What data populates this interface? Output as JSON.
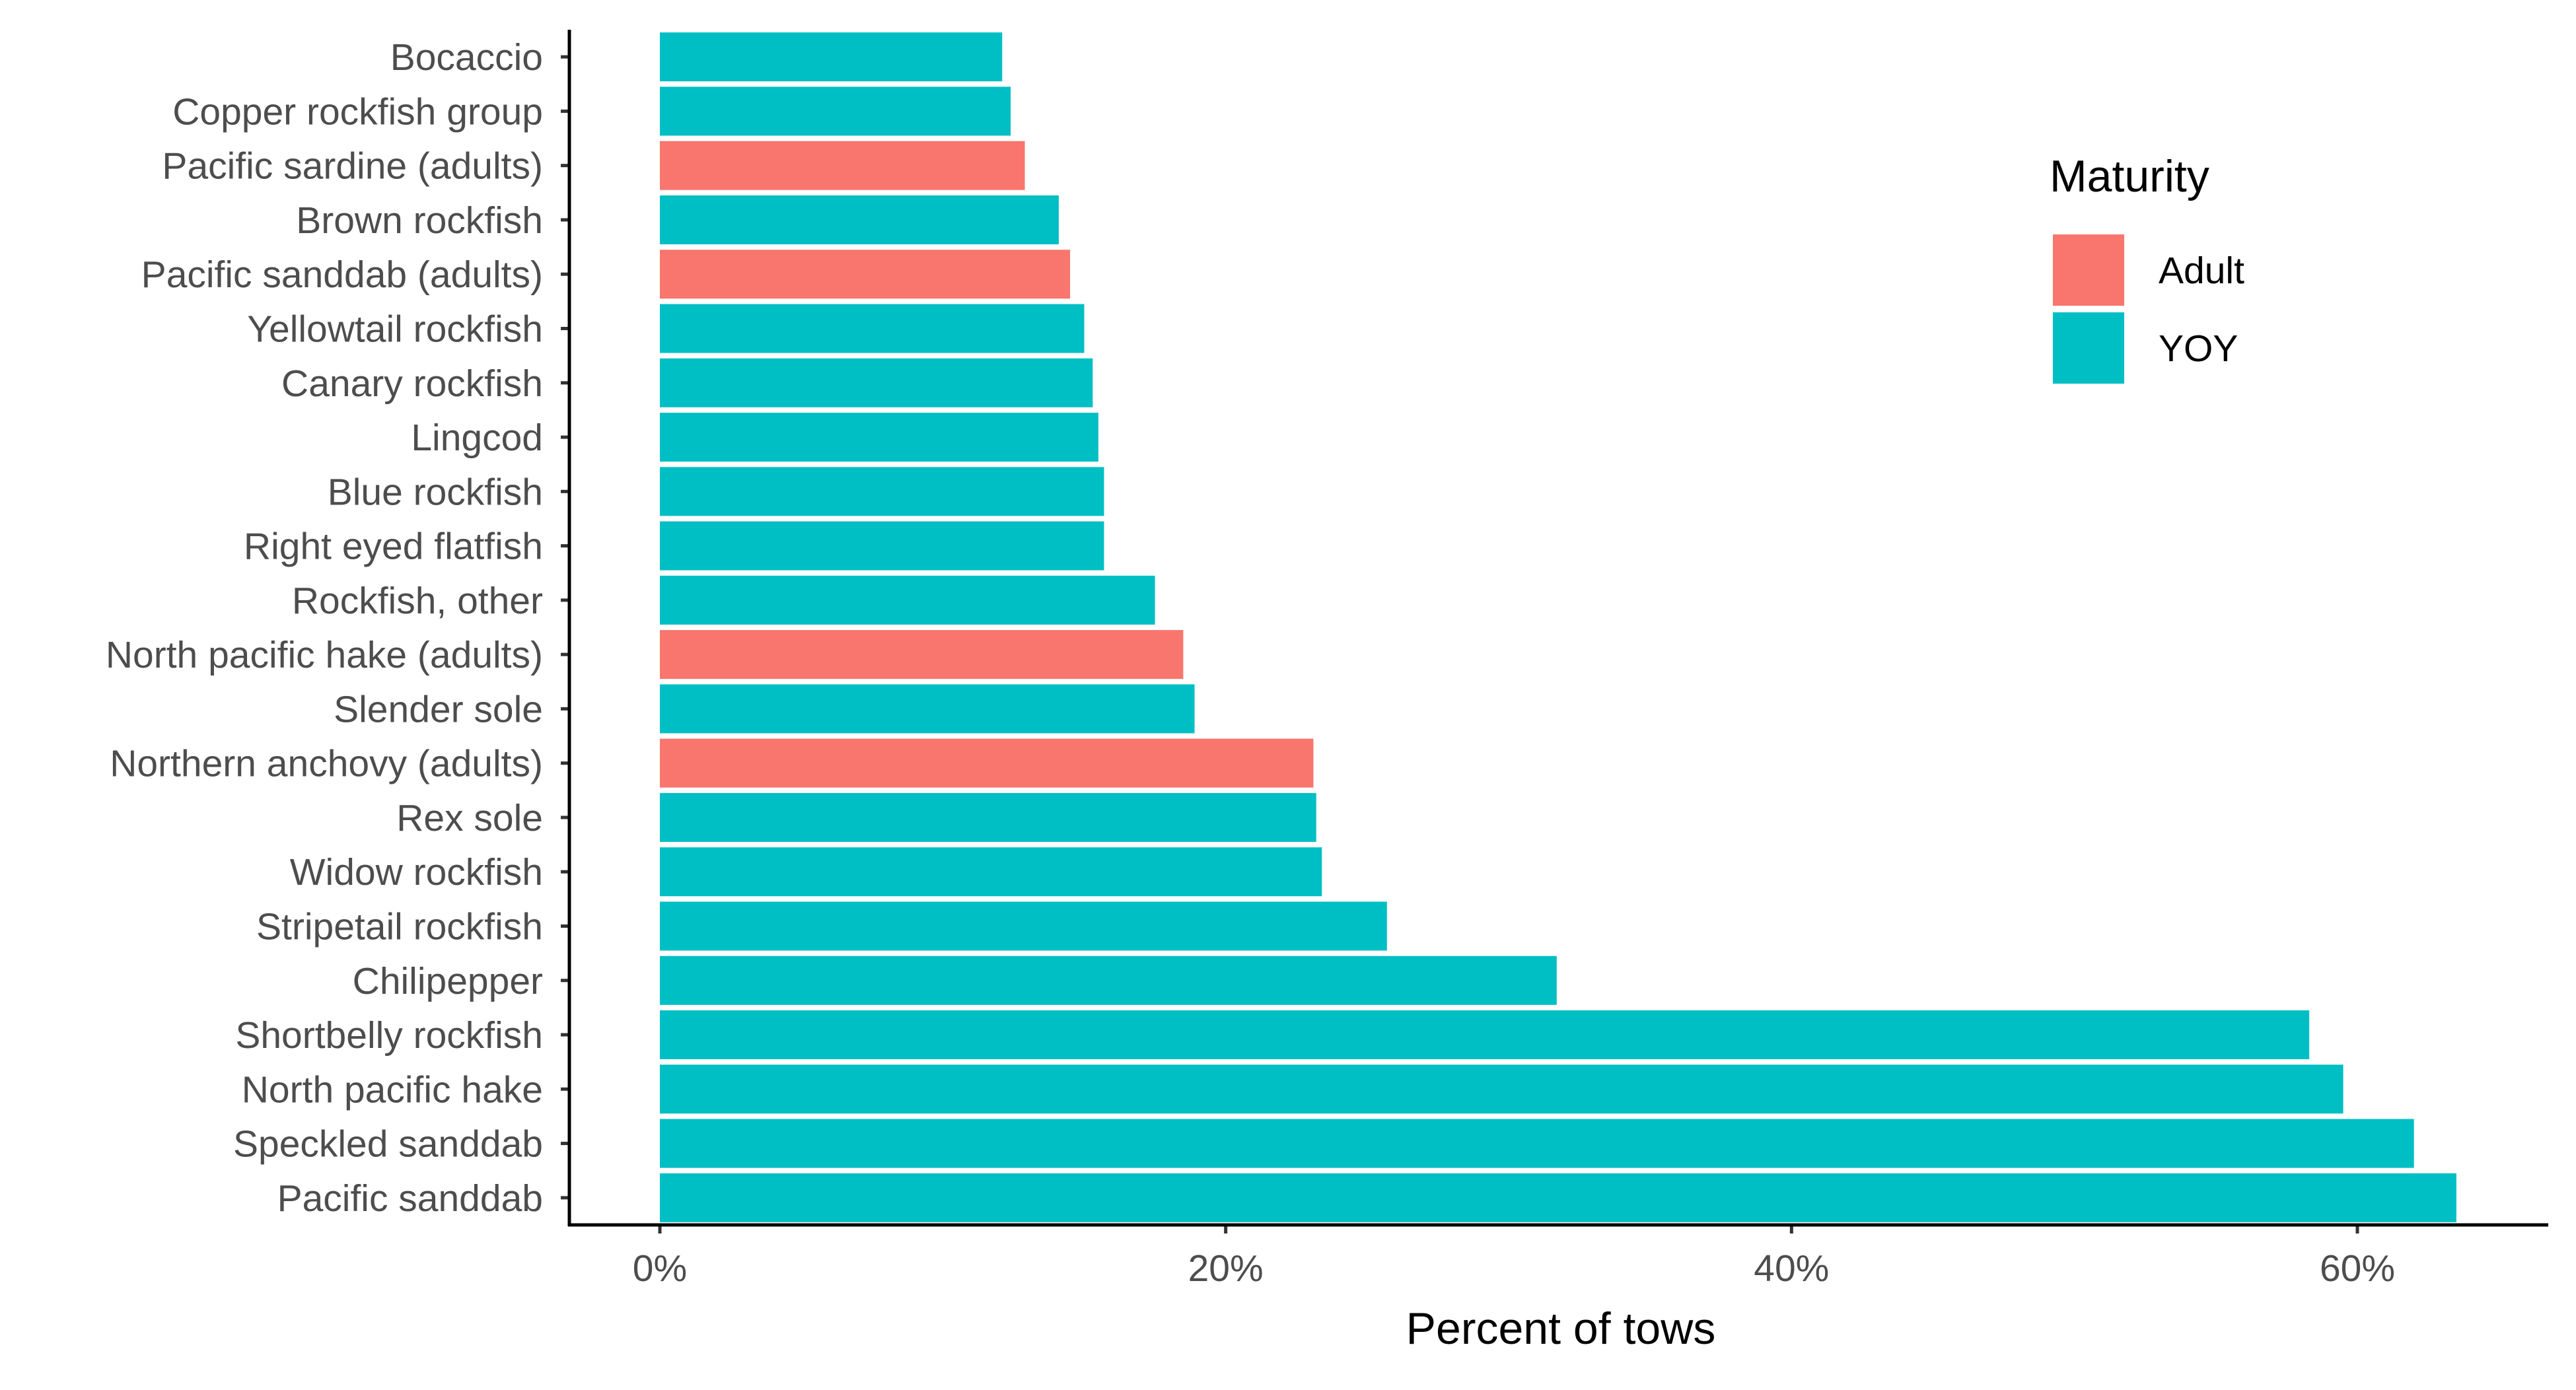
{
  "chart_data": {
    "type": "bar",
    "orientation": "horizontal",
    "xlabel": "Percent of tows",
    "ylabel": "",
    "xlim": [
      -3.2,
      66
    ],
    "x_ticks": [
      0,
      20,
      40,
      60
    ],
    "x_tick_labels": [
      "0%",
      "20%",
      "40%",
      "60%"
    ],
    "grid": false,
    "legend": {
      "title": "Maturity",
      "placement": "top-right, inside plot",
      "items": [
        {
          "label": "Adult",
          "color": "#F8766D"
        },
        {
          "label": "YOY",
          "color": "#00BFC4"
        }
      ]
    },
    "colors": {
      "Adult": "#F8766D",
      "YOY": "#00BFC4"
    },
    "bars": [
      {
        "category": "Bocaccio",
        "value": 12.1,
        "maturity": "YOY"
      },
      {
        "category": "Copper rockfish group",
        "value": 12.4,
        "maturity": "YOY"
      },
      {
        "category": "Pacific sardine (adults)",
        "value": 12.9,
        "maturity": "Adult"
      },
      {
        "category": "Brown rockfish",
        "value": 14.1,
        "maturity": "YOY"
      },
      {
        "category": "Pacific sanddab (adults)",
        "value": 14.5,
        "maturity": "Adult"
      },
      {
        "category": "Yellowtail rockfish",
        "value": 15.0,
        "maturity": "YOY"
      },
      {
        "category": "Canary rockfish",
        "value": 15.3,
        "maturity": "YOY"
      },
      {
        "category": "Lingcod",
        "value": 15.5,
        "maturity": "YOY"
      },
      {
        "category": "Blue rockfish",
        "value": 15.7,
        "maturity": "YOY"
      },
      {
        "category": "Right eyed flatfish",
        "value": 15.7,
        "maturity": "YOY"
      },
      {
        "category": "Rockfish, other",
        "value": 17.5,
        "maturity": "YOY"
      },
      {
        "category": "North pacific hake (adults)",
        "value": 18.5,
        "maturity": "Adult"
      },
      {
        "category": "Slender sole",
        "value": 18.9,
        "maturity": "YOY"
      },
      {
        "category": "Northern anchovy (adults)",
        "value": 23.1,
        "maturity": "Adult"
      },
      {
        "category": "Rex sole",
        "value": 23.2,
        "maturity": "YOY"
      },
      {
        "category": "Widow rockfish",
        "value": 23.4,
        "maturity": "YOY"
      },
      {
        "category": "Stripetail rockfish",
        "value": 25.7,
        "maturity": "YOY"
      },
      {
        "category": "Chilipepper",
        "value": 31.7,
        "maturity": "YOY"
      },
      {
        "category": "Shortbelly rockfish",
        "value": 58.3,
        "maturity": "YOY"
      },
      {
        "category": "North pacific hake",
        "value": 59.5,
        "maturity": "YOY"
      },
      {
        "category": "Speckled sanddab",
        "value": 62.0,
        "maturity": "YOY"
      },
      {
        "category": "Pacific sanddab",
        "value": 63.5,
        "maturity": "YOY"
      }
    ]
  }
}
